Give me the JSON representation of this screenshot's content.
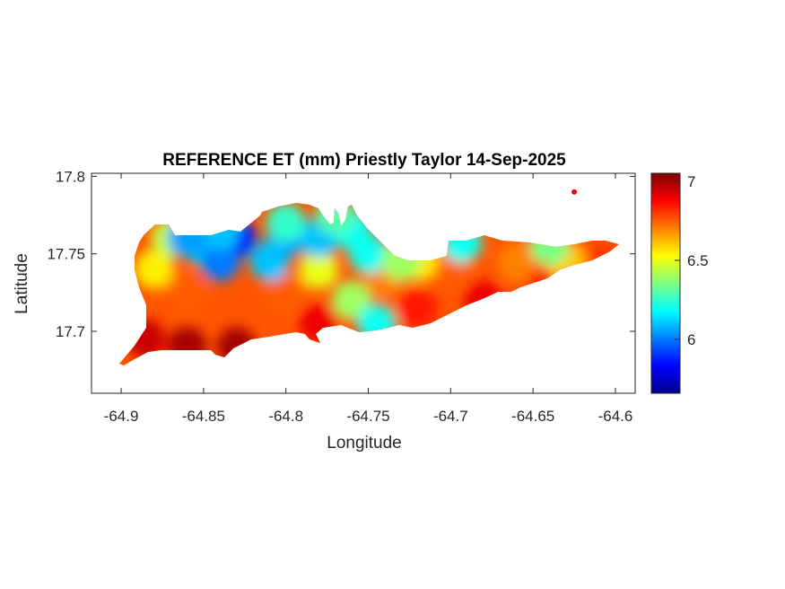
{
  "chart_data": {
    "type": "heatmap",
    "title": "REFERENCE ET (mm) Priestly Taylor 14-Sep-2025",
    "xlabel": "Longitude",
    "ylabel": "Latitude",
    "xlim": [
      -64.918,
      -64.588
    ],
    "ylim": [
      17.66,
      17.802
    ],
    "xticks": [
      -64.9,
      -64.85,
      -64.8,
      -64.75,
      -64.7,
      -64.65,
      -64.6
    ],
    "xtick_labels": [
      "-64.9",
      "-64.85",
      "-64.8",
      "-64.75",
      "-64.7",
      "-64.65",
      "-64.6"
    ],
    "yticks": [
      17.7,
      17.75,
      17.8
    ],
    "ytick_labels": [
      "17.7",
      "17.75",
      "17.8"
    ],
    "colorbar": {
      "colormap": "jet",
      "clim": [
        5.66,
        7.05
      ],
      "ticks": [
        6,
        6.5,
        7
      ],
      "tick_labels": [
        "6",
        "6.5",
        "7"
      ],
      "location": "right"
    },
    "grid": false,
    "field_samples": [
      {
        "lon": -64.86,
        "lat": 17.69,
        "value": 7.0
      },
      {
        "lon": -64.83,
        "lat": 17.69,
        "value": 7.0
      },
      {
        "lon": -64.885,
        "lat": 17.695,
        "value": 6.95
      },
      {
        "lon": -64.78,
        "lat": 17.705,
        "value": 6.9
      },
      {
        "lon": -64.72,
        "lat": 17.715,
        "value": 6.85
      },
      {
        "lon": -64.68,
        "lat": 17.72,
        "value": 6.9
      },
      {
        "lon": -64.64,
        "lat": 17.73,
        "value": 6.85
      },
      {
        "lon": -64.61,
        "lat": 17.745,
        "value": 6.8
      },
      {
        "lon": -64.58,
        "lat": 17.753,
        "value": 6.85
      },
      {
        "lon": -64.86,
        "lat": 17.725,
        "value": 6.75
      },
      {
        "lon": -64.8,
        "lat": 17.725,
        "value": 6.75
      },
      {
        "lon": -64.74,
        "lat": 17.735,
        "value": 6.7
      },
      {
        "lon": -64.7,
        "lat": 17.74,
        "value": 6.75
      },
      {
        "lon": -64.66,
        "lat": 17.745,
        "value": 6.7
      },
      {
        "lon": -64.88,
        "lat": 17.74,
        "value": 6.55
      },
      {
        "lon": -64.87,
        "lat": 17.76,
        "value": 6.45
      },
      {
        "lon": -64.78,
        "lat": 17.74,
        "value": 6.5
      },
      {
        "lon": -64.72,
        "lat": 17.745,
        "value": 6.55
      },
      {
        "lon": -64.63,
        "lat": 17.745,
        "value": 6.6
      },
      {
        "lon": -64.85,
        "lat": 17.755,
        "value": 6.15
      },
      {
        "lon": -64.83,
        "lat": 17.76,
        "value": 5.85
      },
      {
        "lon": -64.8,
        "lat": 17.76,
        "value": 6.05
      },
      {
        "lon": -64.81,
        "lat": 17.745,
        "value": 6.1
      },
      {
        "lon": -64.84,
        "lat": 17.745,
        "value": 6.0
      },
      {
        "lon": -64.78,
        "lat": 17.76,
        "value": 6.1
      },
      {
        "lon": -64.76,
        "lat": 17.765,
        "value": 6.2
      },
      {
        "lon": -64.77,
        "lat": 17.775,
        "value": 6.3
      },
      {
        "lon": -64.8,
        "lat": 17.77,
        "value": 6.25
      },
      {
        "lon": -64.84,
        "lat": 17.765,
        "value": 6.1
      },
      {
        "lon": -64.86,
        "lat": 17.76,
        "value": 6.05
      },
      {
        "lon": -64.75,
        "lat": 17.75,
        "value": 6.2
      },
      {
        "lon": -64.73,
        "lat": 17.745,
        "value": 6.4
      },
      {
        "lon": -64.76,
        "lat": 17.72,
        "value": 6.4
      },
      {
        "lon": -64.745,
        "lat": 17.705,
        "value": 6.2
      },
      {
        "lon": -64.64,
        "lat": 17.755,
        "value": 6.35
      },
      {
        "lon": -64.693,
        "lat": 17.757,
        "value": 6.2
      },
      {
        "lon": -64.625,
        "lat": 17.79,
        "value": 6.9
      }
    ]
  }
}
